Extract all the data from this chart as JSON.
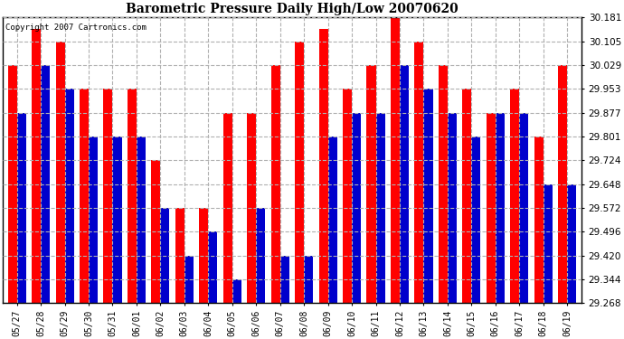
{
  "title": "Barometric Pressure Daily High/Low 20070620",
  "copyright_text": "Copyright 2007 Cartronics.com",
  "dates": [
    "05/27",
    "05/28",
    "05/29",
    "05/30",
    "05/31",
    "06/01",
    "06/02",
    "06/03",
    "06/04",
    "06/05",
    "06/06",
    "06/07",
    "06/08",
    "06/09",
    "06/10",
    "06/11",
    "06/12",
    "06/13",
    "06/14",
    "06/15",
    "06/16",
    "06/17",
    "06/18",
    "06/19"
  ],
  "highs": [
    30.029,
    30.143,
    30.105,
    29.953,
    29.953,
    29.953,
    29.724,
    29.572,
    29.572,
    29.877,
    29.877,
    30.029,
    30.105,
    30.143,
    29.953,
    30.029,
    30.181,
    30.105,
    30.029,
    29.953,
    29.877,
    29.953,
    29.801,
    30.029
  ],
  "lows": [
    29.877,
    30.029,
    29.953,
    29.801,
    29.801,
    29.801,
    29.572,
    29.42,
    29.496,
    29.344,
    29.572,
    29.42,
    29.42,
    29.801,
    29.877,
    29.877,
    30.029,
    29.953,
    29.877,
    29.801,
    29.877,
    29.877,
    29.648,
    29.648
  ],
  "high_color": "#ff0000",
  "low_color": "#0000cc",
  "bg_color": "#ffffff",
  "plot_bg_color": "#ffffff",
  "grid_color": "#b0b0b0",
  "ymin": 29.268,
  "ymax": 30.181,
  "yticks": [
    29.268,
    29.344,
    29.42,
    29.496,
    29.572,
    29.648,
    29.724,
    29.801,
    29.877,
    29.953,
    30.029,
    30.105,
    30.181
  ]
}
